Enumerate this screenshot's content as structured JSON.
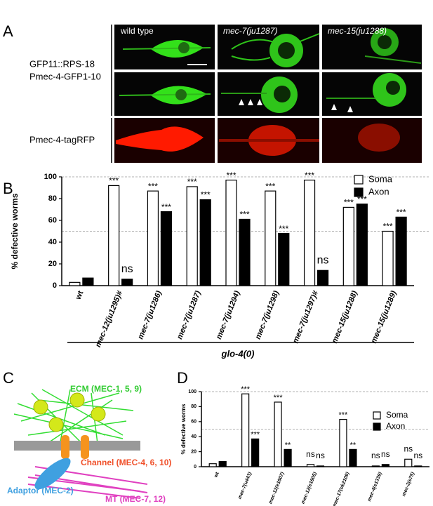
{
  "panels": {
    "a": "A",
    "b": "B",
    "c": "C",
    "d": "D"
  },
  "panel_a": {
    "row_labels": [
      "GFP11::RPS-18",
      "Pmec-4-GFP1-10",
      "Pmec-4-tagRFP"
    ],
    "column_labels": [
      "wild type",
      "mec-7(ju1287)",
      "mec-15(ju1288)"
    ]
  },
  "panel_c": {
    "labels": [
      "ECM (MEC-1, 5, 9)",
      "Channel (MEC-4, 6, 10)",
      "Adaptor (MEC-2)",
      "MT (MEC-7, 12)"
    ]
  },
  "chart_data": [
    {
      "type": "bar",
      "y_label": "% defective worms",
      "categories": [
        "wt",
        "mec-12(ju1295)#",
        "mec-7(ju1286)",
        "mec-7(ju1287)",
        "mec-7(ju1294)",
        "mec-7(ju1298)",
        "mec-7(ju1297)#",
        "mec-15(ju1288)",
        "mec-15(ju1289)"
      ],
      "series": [
        {
          "name": "Soma",
          "color": "#ffffff",
          "values": [
            3,
            92,
            87,
            91,
            97,
            87,
            97,
            72,
            50
          ],
          "labels": [
            null,
            "***",
            "***",
            "***",
            "***",
            "***",
            "***",
            "***",
            "***"
          ]
        },
        {
          "name": "Axon",
          "color": "#000000",
          "values": [
            7,
            6,
            68,
            79,
            61,
            48,
            14,
            75,
            63
          ],
          "labels": [
            null,
            "ns",
            "***",
            "***",
            "***",
            "***",
            "ns",
            "***",
            "***"
          ]
        }
      ],
      "ylim": [
        0,
        100
      ],
      "yticks": [
        0,
        20,
        40,
        60,
        80,
        100
      ],
      "reference_lines": [
        100,
        50
      ],
      "group_label": "glo-4(0)",
      "legend": "upper right"
    },
    {
      "type": "bar",
      "y_label": "% defective worms",
      "categories": [
        "wt",
        "mec-7(u443)",
        "mec-12(e1607)",
        "mec-12(e1605)",
        "mec-17(ok2109)",
        "mec-4(e1339)",
        "mec-2(e75)"
      ],
      "series": [
        {
          "name": "Soma",
          "color": "#ffffff",
          "values": [
            4,
            97,
            86,
            3,
            63,
            1,
            10
          ],
          "labels": [
            null,
            "***",
            "***",
            "ns",
            "***",
            "ns",
            "ns"
          ]
        },
        {
          "name": "Axon",
          "color": "#000000",
          "values": [
            7,
            37,
            23,
            1,
            23,
            3,
            1
          ],
          "labels": [
            null,
            "***",
            "**",
            "ns",
            "**",
            "ns",
            "ns"
          ]
        }
      ],
      "ylim": [
        0,
        100
      ],
      "yticks": [
        0,
        20,
        40,
        60,
        80,
        100
      ],
      "reference_lines": [
        100,
        50
      ],
      "legend": "upper right"
    }
  ]
}
